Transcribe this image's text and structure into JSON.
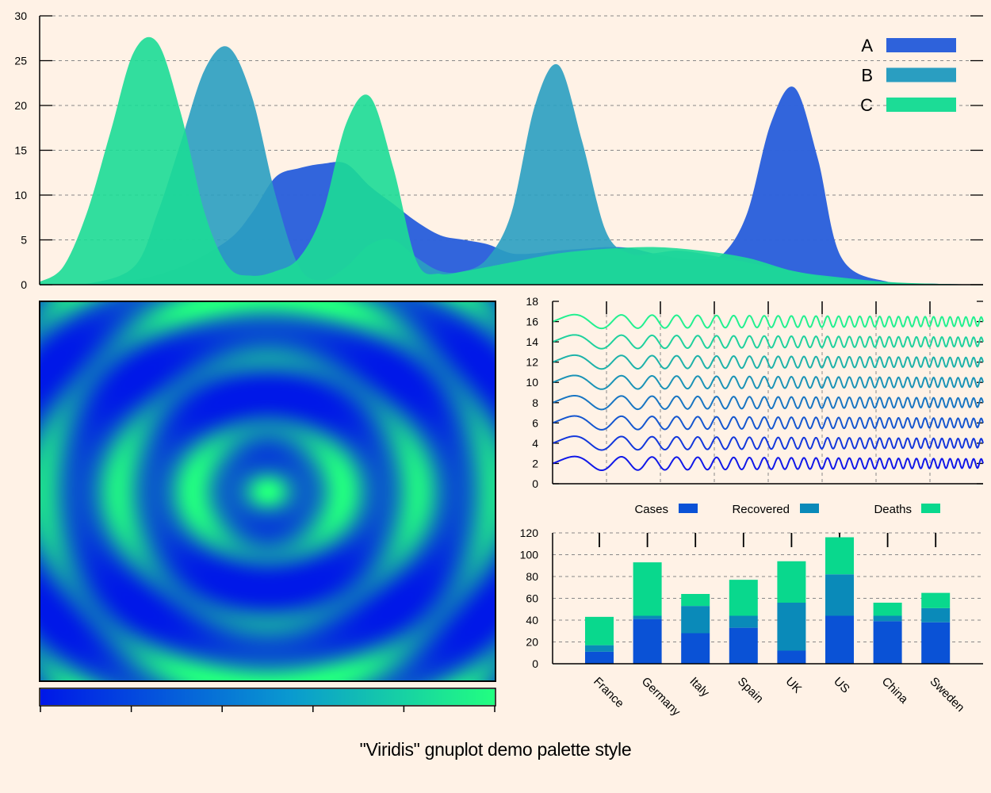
{
  "caption": "\"Viridis\" gnuplot demo palette style",
  "colors": {
    "background": "#fff2e6",
    "series_a": "#2e62db",
    "series_b": "#2a9ec1",
    "series_c": "#1cdc96",
    "palette_low": "#0018e8",
    "palette_high": "#22ff80",
    "bar_cases": "#0a52d6",
    "bar_recovered": "#0a8ab9",
    "bar_deaths": "#09d88d"
  },
  "chart_data": [
    {
      "type": "area",
      "ylim": [
        0,
        30
      ],
      "xlim": [
        0,
        20
      ],
      "y_ticks": [
        "0",
        "5",
        "10",
        "15",
        "20",
        "25",
        "30"
      ],
      "legend_placement": "top-right",
      "grid": true,
      "series": [
        {
          "name": "A",
          "color": "#2e62db",
          "x": [
            0,
            1,
            2,
            3,
            4,
            4.5,
            5,
            5.5,
            6,
            6.5,
            7,
            7.5,
            8,
            8.5,
            9,
            9.5,
            10,
            10.5,
            11,
            11.5,
            12,
            12.5,
            13,
            13.5,
            14,
            14.5,
            15,
            15.5,
            16,
            16.5,
            17,
            18,
            19,
            20
          ],
          "y": [
            0,
            0.1,
            0.5,
            2,
            5,
            8,
            12,
            13,
            13.5,
            13.5,
            11,
            9,
            7,
            5.5,
            5,
            4.5,
            3.5,
            3.5,
            3.8,
            4,
            4.2,
            4.1,
            3.5,
            3,
            2.8,
            3.5,
            8,
            18,
            22,
            14,
            3,
            0.3,
            0.1,
            0
          ]
        },
        {
          "name": "B",
          "color": "#2a9ec1",
          "x": [
            0,
            1,
            2,
            2.5,
            3,
            3.5,
            4,
            4.5,
            5,
            5.5,
            6,
            6.5,
            7,
            7.5,
            8,
            8.5,
            9,
            9.5,
            10,
            10.5,
            11,
            11.5,
            12,
            12.5,
            13,
            13.5,
            14,
            14.5,
            15,
            15.5,
            16,
            17,
            18,
            19,
            20
          ],
          "y": [
            0,
            0.1,
            2,
            8,
            16,
            24,
            26.5,
            21,
            10,
            2,
            0.5,
            2,
            4.5,
            5,
            3,
            1.5,
            1.5,
            3,
            8,
            20,
            24.5,
            16,
            6,
            3.5,
            3.5,
            3.8,
            3.5,
            3,
            2.5,
            2,
            1.5,
            0.5,
            0.2,
            0.1,
            0
          ]
        },
        {
          "name": "C",
          "color": "#1cdc96",
          "x": [
            0,
            0.5,
            1,
            1.5,
            2,
            2.5,
            3,
            3.5,
            4,
            4.5,
            5,
            5.5,
            6,
            6.5,
            7,
            7.5,
            8,
            8.5,
            9,
            10,
            11,
            12,
            13,
            14,
            15,
            16,
            17,
            18,
            19,
            20
          ],
          "y": [
            0.3,
            2,
            8,
            17,
            26,
            27,
            19,
            8,
            2,
            1,
            1.5,
            3,
            8,
            18,
            21,
            13,
            2.5,
            1.2,
            1.5,
            2.5,
            3.5,
            4,
            4.2,
            3.8,
            3,
            1.5,
            0.8,
            0.3,
            0.1,
            0
          ]
        }
      ]
    },
    {
      "type": "heatmap",
      "description_function": "concentric rings",
      "palette": [
        "#0018e8",
        "#22ff80"
      ]
    },
    {
      "type": "line",
      "ylim": [
        0,
        18
      ],
      "y_ticks": [
        "0",
        "2",
        "4",
        "6",
        "8",
        "10",
        "12",
        "14",
        "16",
        "18"
      ],
      "offsets": [
        2,
        4,
        6,
        8,
        10,
        12,
        14,
        16
      ],
      "grid": true
    },
    {
      "type": "bar",
      "stacked": true,
      "categories": [
        "France",
        "Germany",
        "Italy",
        "Spain",
        "UK",
        "US",
        "China",
        "Sweden"
      ],
      "ylim": [
        0,
        120
      ],
      "y_ticks": [
        "0",
        "20",
        "40",
        "60",
        "80",
        "100",
        "120"
      ],
      "legend_placement": "top",
      "series": [
        {
          "name": "Cases",
          "color": "#0a52d6",
          "values": [
            11,
            41,
            28,
            33,
            12,
            44,
            39,
            38
          ]
        },
        {
          "name": "Recovered",
          "color": "#0a8ab9",
          "values": [
            6,
            3,
            25,
            11,
            44,
            38,
            5,
            13
          ]
        },
        {
          "name": "Deaths",
          "color": "#09d88d",
          "values": [
            26,
            49,
            11,
            33,
            38,
            34,
            12,
            14
          ]
        }
      ]
    }
  ]
}
